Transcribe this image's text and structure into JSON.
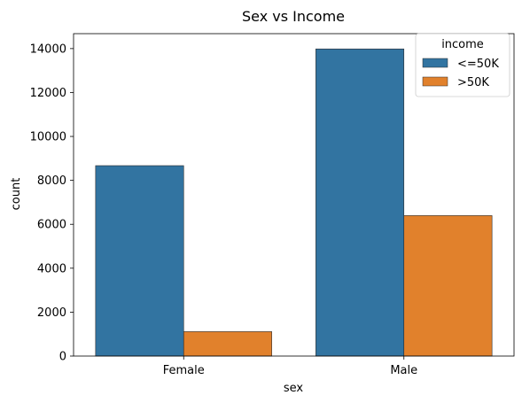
{
  "chart_data": {
    "type": "bar",
    "title": "Sex vs Income",
    "xlabel": "sex",
    "ylabel": "count",
    "categories": [
      "Female",
      "Male"
    ],
    "series": [
      {
        "name": "<=50K",
        "values": [
          8670,
          13985
        ],
        "color": "#3274a1"
      },
      {
        "name": ">50K",
        "values": [
          1112,
          6396
        ],
        "color": "#e1812c"
      }
    ],
    "ylim": [
      0,
      14680
    ],
    "yticks": [
      0,
      2000,
      4000,
      6000,
      8000,
      10000,
      12000,
      14000
    ],
    "ytick_labels": [
      "0",
      "2000",
      "4000",
      "6000",
      "8000",
      "10000",
      "12000",
      "14000"
    ],
    "legend": {
      "title": "income",
      "placement": "top-right"
    },
    "grid": false
  }
}
